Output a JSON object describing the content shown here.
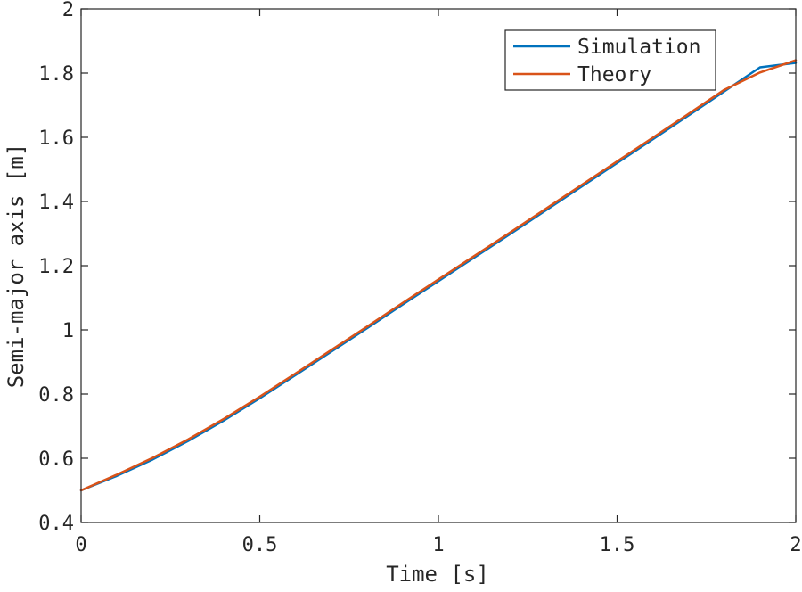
{
  "chart_data": {
    "type": "line",
    "title": "",
    "xlabel": "Time [s]",
    "ylabel": "Semi-major axis [m]",
    "xlim": [
      0,
      2
    ],
    "ylim": [
      0.4,
      2
    ],
    "xticks": [
      0,
      0.5,
      1,
      1.5,
      2
    ],
    "xtick_labels": [
      "0",
      "0.5",
      "1",
      "1.5",
      "2"
    ],
    "yticks": [
      0.4,
      0.6,
      0.8,
      1.0,
      1.2,
      1.4,
      1.6,
      1.8,
      2.0
    ],
    "ytick_labels": [
      "0.4",
      "0.6",
      "0.8",
      "1",
      "1.2",
      "1.4",
      "1.6",
      "1.8",
      "2"
    ],
    "grid": false,
    "legend_position": "top-right",
    "series": [
      {
        "name": "Simulation",
        "color": "#0072BD",
        "x": [
          0,
          0.1,
          0.2,
          0.3,
          0.4,
          0.5,
          0.6,
          0.7,
          0.8,
          0.9,
          1.0,
          1.1,
          1.2,
          1.3,
          1.4,
          1.5,
          1.6,
          1.7,
          1.8,
          1.9,
          2.0
        ],
        "y": [
          0.5,
          0.545,
          0.596,
          0.654,
          0.718,
          0.787,
          0.859,
          0.932,
          1.005,
          1.079,
          1.152,
          1.225,
          1.298,
          1.372,
          1.446,
          1.52,
          1.594,
          1.668,
          1.743,
          1.818,
          1.832
        ]
      },
      {
        "name": "Theory",
        "color": "#D95319",
        "x": [
          0,
          0.1,
          0.2,
          0.3,
          0.4,
          0.5,
          0.6,
          0.7,
          0.8,
          0.9,
          1.0,
          1.1,
          1.2,
          1.3,
          1.4,
          1.5,
          1.6,
          1.7,
          1.8,
          1.9,
          2.0
        ],
        "y": [
          0.5,
          0.549,
          0.601,
          0.659,
          0.723,
          0.792,
          0.864,
          0.937,
          1.01,
          1.084,
          1.157,
          1.23,
          1.303,
          1.377,
          1.451,
          1.525,
          1.599,
          1.673,
          1.748,
          1.802,
          1.84
        ]
      }
    ]
  }
}
